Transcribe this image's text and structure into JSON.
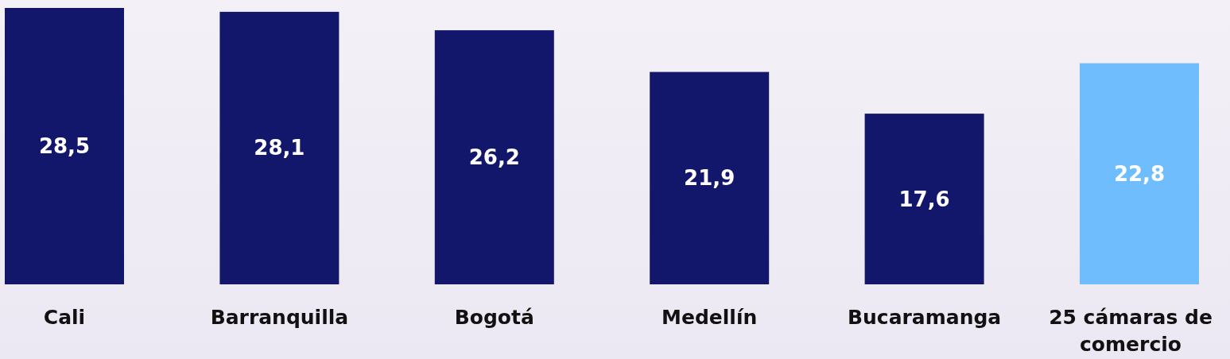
{
  "chart_data": {
    "type": "bar",
    "categories": [
      "Cali",
      "Barranquilla",
      "Bogotá",
      "Medellín",
      "Bucaramanga",
      "25 cámaras de comercio"
    ],
    "values": [
      28.5,
      28.1,
      26.2,
      21.9,
      17.6,
      22.8
    ],
    "colors": [
      "#13176b",
      "#13176b",
      "#13176b",
      "#13176b",
      "#13176b",
      "#6fbdfc"
    ],
    "value_labels": [
      "28,5",
      "28,1",
      "26,2",
      "21,9",
      "17,6",
      "22,8"
    ]
  }
}
